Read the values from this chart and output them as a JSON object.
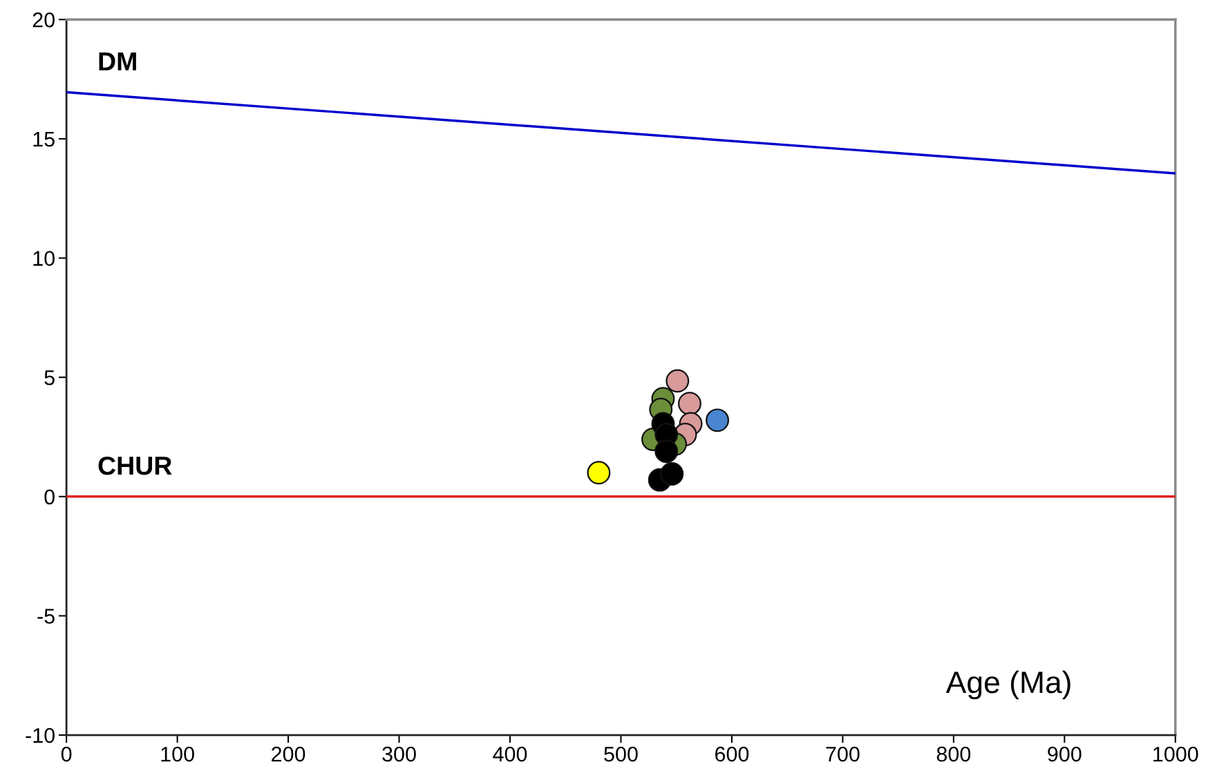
{
  "chart_data": {
    "type": "scatter",
    "xlabel": "Age (Ma)",
    "xlim": [
      0,
      1000
    ],
    "xticks": [
      0,
      100,
      200,
      300,
      400,
      500,
      600,
      700,
      800,
      900,
      1000
    ],
    "ylim": [
      -10,
      20
    ],
    "yticks": [
      -10,
      -5,
      0,
      5,
      10,
      15,
      20
    ],
    "grid": false,
    "marker": "circle",
    "series": [
      {
        "name": "DM",
        "type": "line",
        "color": "#0000cc",
        "x": [
          0,
          1000
        ],
        "values": [
          16.95,
          13.55
        ],
        "marker": "none"
      },
      {
        "name": "CHUR",
        "type": "line",
        "color": "#e02020",
        "x": [
          0,
          1000
        ],
        "values": [
          0,
          0
        ],
        "marker": "none"
      },
      {
        "color": "#ffff00",
        "x": [
          480
        ],
        "values": [
          1.0
        ]
      },
      {
        "color": "#4a86d0",
        "x": [
          587
        ],
        "values": [
          3.2
        ]
      },
      {
        "color": "#d99a9a",
        "x": [
          551,
          562,
          563,
          558
        ],
        "values": [
          4.85,
          3.9,
          3.05,
          2.6
        ]
      },
      {
        "color": "#6b8e3a",
        "x": [
          538,
          536,
          529,
          549
        ],
        "values": [
          4.1,
          3.65,
          2.4,
          2.2
        ]
      },
      {
        "color": "#000000",
        "x": [
          538,
          541,
          541,
          535,
          546
        ],
        "values": [
          3.05,
          2.6,
          1.9,
          0.7,
          0.95
        ]
      }
    ]
  }
}
